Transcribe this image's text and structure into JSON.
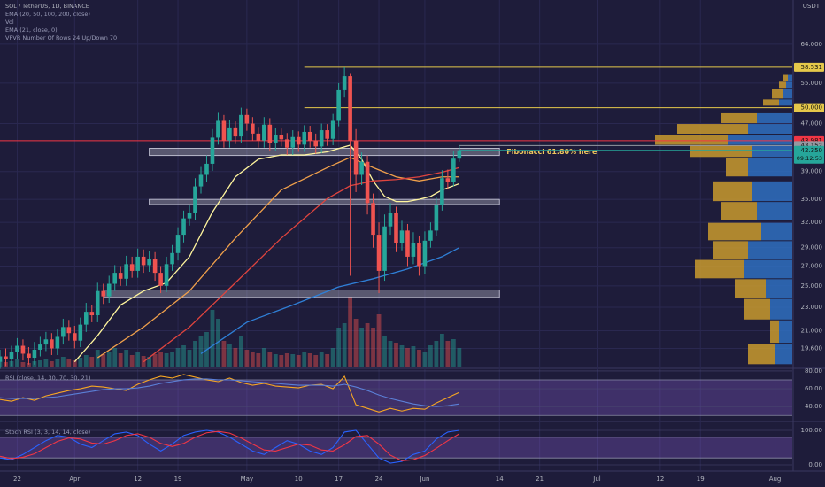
{
  "chart_data": [
    {
      "type": "candlestick",
      "title": "SOL / TetherUS, 1D, BINANCE",
      "unit": "USDT",
      "indicators": [
        "EMA (20, 50, 100, 200, close)",
        "Vol",
        "EMA (21, close, 0)",
        "VPVR Number Of Rows 24 Up/Down 70"
      ],
      "x": [
        0,
        1,
        2,
        3,
        4,
        5,
        6,
        7,
        8,
        9,
        10,
        11,
        12,
        13,
        14,
        15,
        16,
        17,
        18,
        19,
        20,
        21,
        22,
        23,
        24,
        25,
        26,
        27,
        28,
        29,
        30,
        31,
        32,
        33,
        34,
        35,
        36,
        37,
        38,
        39,
        40,
        41,
        42,
        43,
        44,
        45,
        46,
        47,
        48,
        49,
        50,
        51,
        52,
        53,
        54,
        55,
        56,
        57,
        58,
        59,
        60,
        61,
        62,
        63,
        64,
        65,
        66,
        67,
        68,
        69,
        70,
        71,
        72,
        73,
        74,
        75,
        76,
        77,
        78,
        79,
        80
      ],
      "open": [
        18.6,
        19.0,
        18.8,
        19.3,
        19.8,
        19.2,
        18.9,
        19.5,
        19.9,
        20.3,
        19.6,
        20.5,
        21.3,
        20.8,
        20.2,
        21.5,
        22.6,
        22.3,
        24.5,
        24.0,
        25.2,
        26.3,
        25.7,
        27.2,
        26.5,
        28.0,
        27.1,
        27.8,
        26.3,
        25.0,
        27.2,
        28.4,
        30.5,
        32.5,
        33.2,
        36.8,
        38.5,
        40.2,
        44.5,
        47.5,
        44.0,
        46.3,
        44.7,
        48.6,
        47.0,
        45.2,
        44.0,
        46.8,
        43.5,
        45.0,
        44.2,
        42.8,
        44.6,
        43.3,
        45.5,
        44.0,
        43.0,
        45.8,
        44.3,
        47.5,
        53.5,
        56.5,
        44.0,
        38.5,
        40.5,
        34.5,
        30.5,
        26.5,
        31.5,
        33.2,
        29.5,
        31.0,
        28.0,
        29.5,
        27.0,
        29.8,
        31.0,
        34.2,
        38.0,
        37.5,
        41.0
      ],
      "high": [
        19.5,
        19.6,
        19.8,
        20.4,
        20.3,
        19.7,
        20.1,
        20.5,
        20.9,
        20.8,
        21.1,
        22.0,
        21.9,
        21.4,
        22.1,
        23.4,
        23.2,
        25.3,
        25.2,
        26.0,
        27.1,
        27.0,
        28.1,
        28.0,
        28.9,
        28.8,
        28.6,
        28.5,
        27.0,
        28.0,
        29.3,
        31.4,
        33.5,
        34.3,
        38.0,
        39.7,
        41.5,
        46.0,
        49.0,
        48.6,
        47.7,
        47.4,
        50.0,
        49.8,
        48.2,
        46.4,
        48.2,
        48.0,
        46.2,
        46.1,
        45.3,
        45.8,
        45.6,
        46.7,
        46.6,
        45.2,
        47.0,
        46.9,
        48.8,
        55.0,
        58.5,
        57.0,
        46.0,
        42.0,
        41.5,
        35.8,
        32.0,
        33.0,
        34.5,
        34.0,
        32.2,
        31.8,
        30.8,
        30.3,
        30.9,
        32.0,
        35.3,
        39.2,
        39.3,
        42.3,
        43.2
      ],
      "low": [
        18.1,
        18.3,
        18.3,
        18.8,
        18.7,
        18.4,
        18.4,
        19.0,
        19.4,
        19.1,
        19.1,
        19.9,
        20.2,
        19.6,
        19.7,
        20.9,
        21.7,
        21.7,
        23.3,
        23.4,
        24.5,
        25.0,
        25.0,
        25.8,
        25.8,
        26.3,
        26.4,
        25.5,
        24.3,
        24.4,
        26.5,
        27.6,
        29.6,
        31.6,
        32.3,
        35.8,
        37.4,
        39.1,
        43.3,
        42.8,
        42.8,
        43.4,
        43.5,
        45.7,
        44.0,
        42.8,
        42.8,
        42.3,
        42.3,
        43.0,
        41.6,
        41.6,
        42.1,
        42.1,
        42.8,
        41.8,
        41.9,
        43.1,
        43.2,
        46.5,
        52.0,
        26.0,
        36.0,
        37.0,
        33.0,
        29.0,
        24.3,
        25.5,
        30.5,
        28.5,
        28.7,
        27.0,
        27.2,
        26.0,
        26.2,
        29.0,
        30.3,
        33.5,
        36.5,
        36.8,
        40.5
      ],
      "close": [
        19.0,
        18.8,
        19.3,
        19.8,
        19.2,
        18.9,
        19.5,
        19.9,
        20.3,
        19.6,
        20.5,
        21.3,
        20.8,
        20.2,
        21.5,
        22.6,
        22.3,
        24.5,
        24.0,
        25.2,
        26.3,
        25.7,
        27.2,
        26.5,
        28.0,
        27.1,
        27.8,
        26.3,
        25.0,
        27.2,
        28.4,
        30.5,
        32.5,
        33.2,
        36.8,
        38.5,
        40.2,
        44.5,
        47.5,
        44.0,
        46.3,
        44.7,
        48.6,
        47.0,
        45.2,
        44.0,
        46.8,
        43.5,
        45.0,
        44.2,
        42.8,
        44.6,
        43.3,
        45.5,
        44.0,
        43.0,
        45.8,
        44.3,
        47.5,
        53.5,
        56.5,
        44.0,
        38.5,
        40.5,
        34.5,
        30.5,
        26.5,
        31.5,
        33.2,
        29.5,
        31.0,
        28.0,
        29.5,
        27.0,
        29.8,
        31.0,
        34.2,
        38.0,
        37.5,
        41.0,
        42.35
      ],
      "volume": [
        8,
        6,
        7,
        9,
        6,
        5,
        7,
        8,
        9,
        7,
        10,
        12,
        9,
        8,
        11,
        14,
        12,
        20,
        15,
        18,
        22,
        16,
        20,
        14,
        18,
        13,
        12,
        15,
        17,
        16,
        18,
        22,
        25,
        20,
        30,
        35,
        40,
        65,
        55,
        30,
        26,
        22,
        35,
        20,
        18,
        16,
        22,
        18,
        15,
        14,
        16,
        15,
        14,
        17,
        16,
        14,
        18,
        15,
        22,
        45,
        50,
        80,
        55,
        45,
        50,
        45,
        60,
        35,
        30,
        28,
        25,
        22,
        24,
        20,
        18,
        25,
        30,
        38,
        30,
        32,
        22
      ],
      "colors": {
        "up": "#26a69a",
        "down": "#ef5350"
      },
      "xlim": [
        0,
        138
      ],
      "xticks": [
        {
          "value": 3,
          "label": "22"
        },
        {
          "value": 13,
          "label": "Apr"
        },
        {
          "value": 24,
          "label": "12"
        },
        {
          "value": 31,
          "label": "19"
        },
        {
          "value": 43,
          "label": "May"
        },
        {
          "value": 52,
          "label": "10"
        },
        {
          "value": 59,
          "label": "17"
        },
        {
          "value": 66,
          "label": "24"
        },
        {
          "value": 74,
          "label": "Jun"
        },
        {
          "value": 87,
          "label": "14"
        },
        {
          "value": 94,
          "label": "21"
        },
        {
          "value": 104,
          "label": "Jul"
        },
        {
          "value": 115,
          "label": "12"
        },
        {
          "value": 122,
          "label": "19"
        },
        {
          "value": 135,
          "label": "Aug"
        }
      ],
      "ylim": [
        18.2,
        76
      ],
      "log_scale": true,
      "yticks": [
        {
          "value": 64,
          "label": "64.000"
        },
        {
          "value": 55,
          "label": "55.000"
        },
        {
          "value": 47,
          "label": "47.000"
        },
        {
          "value": 39,
          "label": "39.000"
        },
        {
          "value": 35,
          "label": "35.000"
        },
        {
          "value": 32,
          "label": "32.000"
        },
        {
          "value": 29,
          "label": "29.000"
        },
        {
          "value": 27,
          "label": "27.000"
        },
        {
          "value": 25,
          "label": "25.000"
        },
        {
          "value": 23,
          "label": "23.000"
        },
        {
          "value": 21,
          "label": "21.000"
        },
        {
          "value": 19.6,
          "label": "19.600"
        }
      ],
      "series": [
        {
          "color": "#fff59d",
          "x": [
            13,
            17,
            21,
            25,
            29,
            33,
            37,
            41,
            45,
            49,
            53,
            57,
            61,
            63,
            65,
            67,
            69,
            71,
            73,
            75,
            77,
            80
          ],
          "values": [
            18.6,
            20.6,
            23.2,
            24.5,
            25.3,
            28.0,
            33.3,
            38.2,
            40.9,
            41.6,
            41.6,
            42.1,
            43.2,
            40.9,
            37.6,
            35.4,
            34.7,
            34.7,
            35.0,
            35.4,
            36.3,
            37.2
          ]
        },
        {
          "color": "#f0a04b",
          "x": [
            17,
            25,
            33,
            41,
            49,
            57,
            61,
            65,
            69,
            73,
            77,
            80
          ],
          "values": [
            18.9,
            21.3,
            24.5,
            30.1,
            36.3,
            39.6,
            41.2,
            39.6,
            38.2,
            37.6,
            38.2,
            38.2
          ]
        },
        {
          "color": "#e0443e",
          "x": [
            25,
            33,
            41,
            49,
            57,
            61,
            65,
            69,
            73,
            77,
            80
          ],
          "values": [
            18.6,
            21.3,
            25.3,
            30.1,
            35.1,
            36.9,
            37.6,
            37.8,
            38.2,
            38.9,
            39.6
          ]
        },
        {
          "color": "#2f7fd6",
          "x": [
            35,
            43,
            51,
            59,
            65,
            71,
            77,
            80
          ],
          "values": [
            19.2,
            21.7,
            23.2,
            24.9,
            25.7,
            26.7,
            28.0,
            29.0
          ]
        }
      ],
      "zones": [
        {
          "from": 26,
          "to": 87,
          "low": 41.5,
          "high": 42.7
        },
        {
          "from": 26,
          "to": 87,
          "low": 34.3,
          "high": 35.0
        },
        {
          "from": 18,
          "to": 87,
          "low": 23.9,
          "high": 24.6
        }
      ],
      "annotation": "Fibonacci 61.80% here",
      "levels": [
        {
          "value": 58.531,
          "label": "58.531",
          "color": "#e5c84a",
          "from": 53
        },
        {
          "value": 50,
          "label": "50.000",
          "color": "#e5c84a",
          "from": 53
        },
        {
          "value": 43.981,
          "label": "43.981",
          "color": "#f23645",
          "from": 0
        },
        {
          "value": 43.152,
          "label": "43.152",
          "color": "#9598a1",
          "from": 80
        },
        {
          "value": 42.35,
          "label": "42.350",
          "color": "#26a69a",
          "from": 80,
          "sub": "09:12:53"
        }
      ],
      "volume_profile": {
        "price_high": [
          56.9,
          55.4,
          53.9,
          51.7,
          49.0,
          47.0,
          45.1,
          43.2,
          41.2,
          37.6,
          34.7,
          32.0,
          29.8,
          27.7,
          25.7,
          23.8,
          21.9,
          20.0
        ],
        "price_low": [
          55.4,
          53.9,
          51.7,
          50.3,
          47.0,
          45.1,
          43.2,
          41.2,
          38.2,
          34.7,
          32.2,
          29.8,
          27.7,
          25.7,
          23.8,
          21.9,
          20.0,
          18.4
        ],
        "up": [
          5,
          7,
          11,
          15,
          40,
          50,
          73,
          45,
          50,
          45,
          40,
          35,
          50,
          55,
          30,
          25,
          15,
          20
        ],
        "down": [
          5,
          8,
          12,
          18,
          40,
          80,
          82,
          70,
          25,
          45,
          40,
          60,
          40,
          55,
          35,
          30,
          10,
          30
        ],
        "colors": {
          "up": "#2f6fc0",
          "down": "#c99a2e"
        }
      }
    },
    {
      "type": "line",
      "title": "RSI (close, 14, 30, 70, 30, 21)",
      "x": [
        0,
        2,
        4,
        6,
        8,
        10,
        12,
        14,
        16,
        18,
        20,
        22,
        24,
        26,
        28,
        30,
        32,
        34,
        36,
        38,
        40,
        42,
        44,
        46,
        48,
        50,
        52,
        54,
        56,
        58,
        60,
        62,
        64,
        66,
        68,
        70,
        72,
        74,
        76,
        78,
        80
      ],
      "series": [
        {
          "color": "#f6a623",
          "values": [
            48,
            46,
            50,
            47,
            52,
            55,
            58,
            60,
            63,
            62,
            60,
            58,
            65,
            70,
            74,
            72,
            76,
            73,
            70,
            68,
            72,
            67,
            64,
            66,
            63,
            62,
            61,
            64,
            65,
            60,
            74,
            42,
            38,
            34,
            38,
            35,
            38,
            37,
            44,
            50,
            56
          ]
        },
        {
          "color": "#5b7fd6",
          "values": [
            50,
            49,
            49,
            49,
            50,
            51,
            53,
            55,
            57,
            59,
            60,
            60,
            61,
            63,
            66,
            68,
            70,
            71,
            71,
            70,
            70,
            69,
            68,
            67,
            66,
            65,
            64,
            64,
            64,
            63,
            65,
            62,
            58,
            53,
            49,
            46,
            43,
            41,
            40,
            41,
            43
          ]
        }
      ],
      "ylim": [
        25.3,
        81.9
      ],
      "yticks": [
        {
          "value": 80,
          "label": "80.00"
        },
        {
          "value": 60,
          "label": "60.00"
        },
        {
          "value": 40,
          "label": "40.00"
        }
      ],
      "band": [
        30,
        70
      ]
    },
    {
      "type": "line",
      "title": "Stoch RSI (3, 3, 14, 14, close)",
      "x": [
        0,
        2,
        4,
        6,
        8,
        10,
        12,
        14,
        16,
        18,
        20,
        22,
        24,
        26,
        28,
        30,
        32,
        34,
        36,
        38,
        40,
        42,
        44,
        46,
        48,
        50,
        52,
        54,
        56,
        58,
        60,
        62,
        64,
        66,
        68,
        70,
        72,
        74,
        76,
        78,
        80
      ],
      "series": [
        {
          "color": "#2962ff",
          "values": [
            20,
            15,
            30,
            50,
            70,
            85,
            80,
            60,
            50,
            70,
            90,
            95,
            85,
            60,
            40,
            60,
            85,
            95,
            100,
            95,
            80,
            60,
            40,
            30,
            50,
            70,
            60,
            40,
            30,
            50,
            95,
            100,
            60,
            20,
            5,
            10,
            30,
            40,
            75,
            95,
            100
          ]
        },
        {
          "color": "#f23645",
          "values": [
            25,
            18,
            22,
            32,
            50,
            68,
            78,
            75,
            63,
            60,
            70,
            85,
            90,
            80,
            62,
            53,
            62,
            80,
            93,
            97,
            92,
            78,
            60,
            43,
            40,
            50,
            60,
            57,
            43,
            40,
            58,
            82,
            85,
            60,
            28,
            12,
            15,
            27,
            48,
            70,
            90
          ]
        }
      ],
      "ylim": [
        -12.8,
        120.5
      ],
      "yticks": [
        {
          "value": 100,
          "label": "100.00"
        },
        {
          "value": 0,
          "label": "0.00"
        }
      ],
      "band": [
        20,
        80
      ]
    }
  ]
}
